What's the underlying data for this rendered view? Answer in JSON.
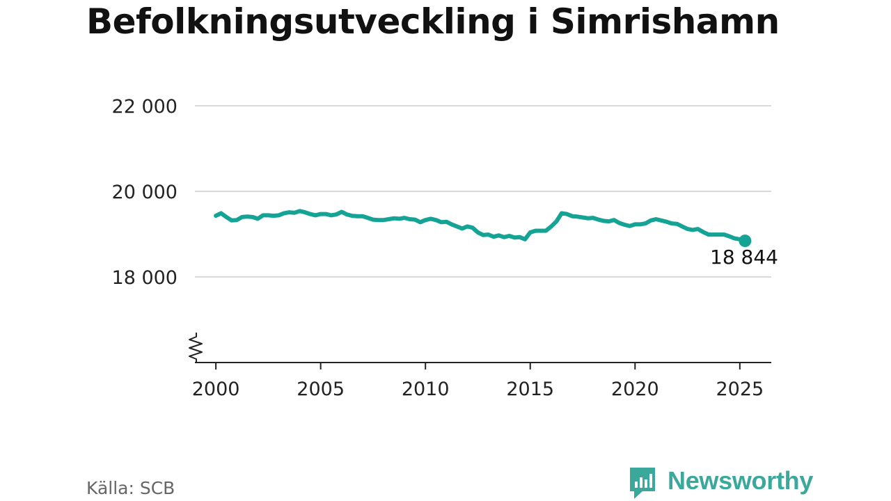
{
  "title": "Befolkningsutveckling i Simrishamn",
  "source": "Källa: SCB",
  "brand": {
    "name": "Newsworthy",
    "icon": "newsworthy-logo-icon"
  },
  "colors": {
    "line": "#14a395",
    "grid": "#d9d9d9",
    "axis": "#222222",
    "text": "#222222",
    "brand": "#3aa89a"
  },
  "chart_data": {
    "type": "line",
    "x_ticks": [
      2000,
      2005,
      2010,
      2015,
      2020,
      2025
    ],
    "x_tick_labels": [
      "2000",
      "2005",
      "2010",
      "2015",
      "2020",
      "2025"
    ],
    "y_ticks": [
      18000,
      20000,
      22000
    ],
    "y_tick_labels": [
      "18 000",
      "20 000",
      "22 000"
    ],
    "xlim": [
      1999.0,
      2026.5
    ],
    "ylim": [
      16000,
      22000
    ],
    "axis_break": true,
    "grid": "horizontal",
    "last_value_label": "18 844",
    "series": [
      {
        "x": [
          2000.0,
          2000.25,
          2000.5,
          2000.75,
          2001.0,
          2001.25,
          2001.5,
          2001.75,
          2002.0,
          2002.25,
          2002.5,
          2002.75,
          2003.0,
          2003.25,
          2003.5,
          2003.75,
          2004.0,
          2004.25,
          2004.5,
          2004.75,
          2005.0,
          2005.25,
          2005.5,
          2005.75,
          2006.0,
          2006.25,
          2006.5,
          2006.75,
          2007.0,
          2007.25,
          2007.5,
          2007.75,
          2008.0,
          2008.25,
          2008.5,
          2008.75,
          2009.0,
          2009.25,
          2009.5,
          2009.75,
          2010.0,
          2010.25,
          2010.5,
          2010.75,
          2011.0,
          2011.25,
          2011.5,
          2011.75,
          2012.0,
          2012.25,
          2012.5,
          2012.75,
          2013.0,
          2013.25,
          2013.5,
          2013.75,
          2014.0,
          2014.25,
          2014.5,
          2014.75,
          2015.0,
          2015.25,
          2015.5,
          2015.75,
          2016.0,
          2016.25,
          2016.5,
          2016.75,
          2017.0,
          2017.25,
          2017.5,
          2017.75,
          2018.0,
          2018.25,
          2018.5,
          2018.75,
          2019.0,
          2019.25,
          2019.5,
          2019.75,
          2020.0,
          2020.25,
          2020.5,
          2020.75,
          2021.0,
          2021.25,
          2021.5,
          2021.75,
          2022.0,
          2022.25,
          2022.5,
          2022.75,
          2023.0,
          2023.25,
          2023.5,
          2023.75,
          2024.0,
          2024.25,
          2024.5,
          2024.75,
          2025.0,
          2025.25
        ],
        "y": [
          19430,
          19490,
          19400,
          19320,
          19330,
          19400,
          19410,
          19400,
          19360,
          19440,
          19440,
          19430,
          19440,
          19490,
          19510,
          19500,
          19540,
          19510,
          19470,
          19440,
          19470,
          19470,
          19440,
          19460,
          19520,
          19460,
          19430,
          19420,
          19420,
          19380,
          19340,
          19330,
          19330,
          19350,
          19370,
          19360,
          19380,
          19350,
          19340,
          19280,
          19330,
          19360,
          19330,
          19280,
          19290,
          19230,
          19180,
          19130,
          19180,
          19150,
          19040,
          18980,
          18990,
          18940,
          18970,
          18930,
          18960,
          18920,
          18930,
          18880,
          19040,
          19080,
          19080,
          19080,
          19180,
          19300,
          19490,
          19470,
          19420,
          19410,
          19390,
          19370,
          19380,
          19340,
          19310,
          19300,
          19330,
          19260,
          19220,
          19190,
          19230,
          19230,
          19250,
          19320,
          19350,
          19320,
          19290,
          19250,
          19240,
          19180,
          19120,
          19100,
          19120,
          19050,
          18990,
          18990,
          18990,
          18990,
          18950,
          18900,
          18880,
          18844
        ]
      }
    ]
  }
}
